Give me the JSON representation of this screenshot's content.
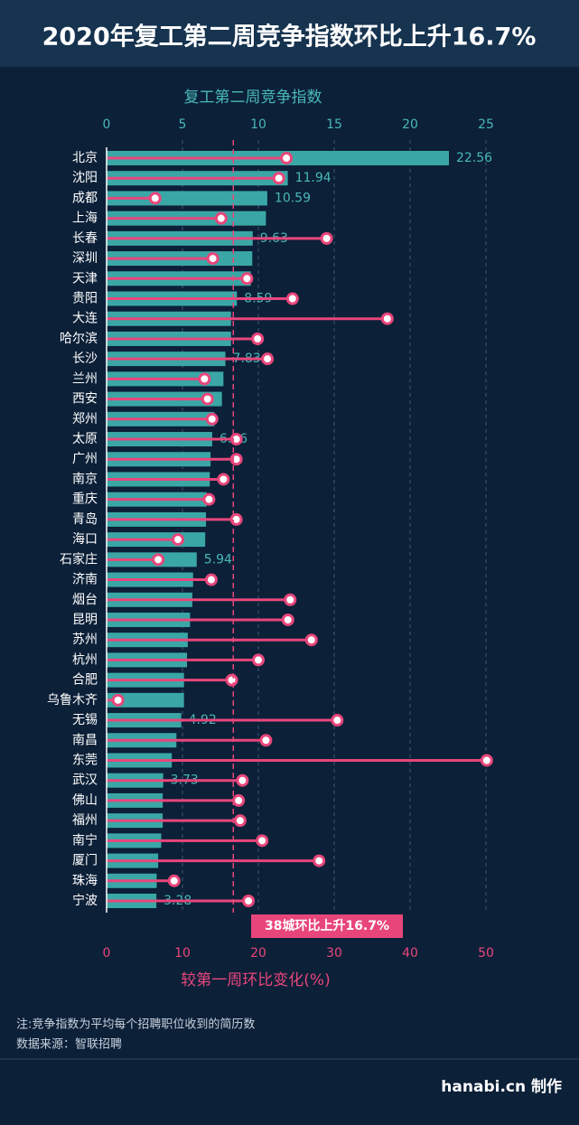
{
  "chart_data": {
    "type": "bar",
    "orientation": "horizontal",
    "title": "2020年复工第二周竞争指数环比上升16.7%",
    "categories": [
      "北京",
      "沈阳",
      "成都",
      "上海",
      "长春",
      "深圳",
      "天津",
      "贵阳",
      "大连",
      "哈尔滨",
      "长沙",
      "兰州",
      "西安",
      "郑州",
      "太原",
      "广州",
      "南京",
      "重庆",
      "青岛",
      "海口",
      "石家庄",
      "济南",
      "烟台",
      "昆明",
      "苏州",
      "杭州",
      "合肥",
      "乌鲁木齐",
      "无锡",
      "南昌",
      "东莞",
      "武汉",
      "佛山",
      "福州",
      "南宁",
      "厦门",
      "珠海",
      "宁波"
    ],
    "series": [
      {
        "name": "复工第二周竞争指数",
        "color": "#3aa7a6",
        "values": [
          22.56,
          11.94,
          10.59,
          10.5,
          9.63,
          9.6,
          9.5,
          8.59,
          8.2,
          8.2,
          7.83,
          7.7,
          7.6,
          7.1,
          6.96,
          6.85,
          6.8,
          6.6,
          6.55,
          6.5,
          5.94,
          5.7,
          5.65,
          5.5,
          5.35,
          5.3,
          5.1,
          5.1,
          4.92,
          4.6,
          4.3,
          3.73,
          3.7,
          3.7,
          3.6,
          3.4,
          3.3,
          3.28
        ],
        "value_labels": [
          "22.56",
          "11.94",
          "10.59",
          null,
          "9.63",
          null,
          null,
          "8.59",
          null,
          null,
          "7.83",
          null,
          null,
          null,
          "6.96",
          null,
          null,
          null,
          null,
          null,
          "5.94",
          null,
          null,
          null,
          null,
          null,
          null,
          null,
          "4.92",
          null,
          null,
          "3.73",
          null,
          null,
          null,
          null,
          null,
          "3.28"
        ]
      },
      {
        "name": "较第一周环比变化(%)",
        "color": "#e8467b",
        "axis": "x2",
        "values": [
          23.7,
          22.7,
          6.4,
          15.1,
          29.0,
          14.0,
          18.5,
          24.5,
          37.0,
          19.9,
          21.2,
          12.9,
          13.3,
          13.9,
          17.1,
          17.1,
          15.4,
          13.5,
          17.1,
          9.4,
          6.8,
          13.8,
          24.2,
          23.9,
          27.0,
          20.0,
          16.5,
          1.5,
          30.4,
          21.0,
          50.1,
          17.9,
          17.4,
          17.6,
          20.5,
          28.0,
          8.9,
          18.7
        ]
      }
    ],
    "xlim": [
      0,
      25
    ],
    "xticks": [
      0,
      5,
      10,
      15,
      20,
      25
    ],
    "x2lim": [
      0,
      50
    ],
    "x2ticks": [
      0,
      10,
      20,
      30,
      40,
      50
    ],
    "grid": true,
    "reference": {
      "value": 16.7,
      "label": "38城环比上升16.7%"
    }
  },
  "footer": {
    "note": "注:竞争指数为平均每个招聘职位收到的简历数",
    "source": "数据来源：智联招聘",
    "credit": "hanabi.cn 制作"
  }
}
